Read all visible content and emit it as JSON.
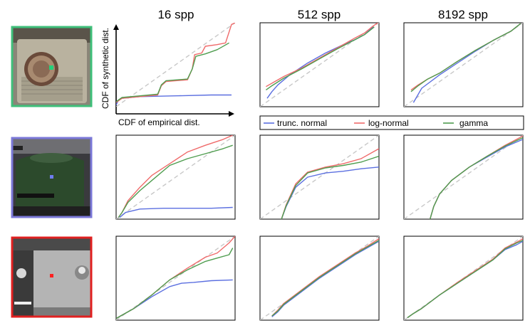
{
  "column_titles": [
    "16 spp",
    "512 spp",
    "8192 spp"
  ],
  "axis_labels": {
    "y": "CDF of synthetic dist.",
    "x": "CDF of empirical dist."
  },
  "legend": [
    {
      "name": "trunc. normal",
      "color": "#5b6fe0"
    },
    {
      "name": "log-normal",
      "color": "#ef6a6a"
    },
    {
      "name": "gamma",
      "color": "#4f9d4f"
    }
  ],
  "thumbnails": [
    {
      "name": "clock-radio-thumbnail",
      "border_color": "#3fbf7a",
      "marker_color": "#22d07a"
    },
    {
      "name": "kettle-thumbnail",
      "border_color": "#7b78d8",
      "marker_color": "#6f7cf0"
    },
    {
      "name": "appliance-thumbnail",
      "border_color": "#e02020",
      "marker_color": "#ff2020"
    }
  ],
  "colors": {
    "diagonal": "#c8c8c8",
    "frame": "#000000"
  },
  "chart_data": [
    {
      "type": "line",
      "row": 0,
      "col": 0,
      "xlim": [
        0,
        1
      ],
      "ylim": [
        0,
        1
      ],
      "series": [
        {
          "name": "trunc. normal",
          "color": "#5b6fe0",
          "x": [
            0,
            0.02,
            0.05,
            0.2,
            0.5,
            0.8,
            0.97
          ],
          "y": [
            0.02,
            0.08,
            0.1,
            0.12,
            0.13,
            0.14,
            0.14
          ]
        },
        {
          "name": "log-normal",
          "color": "#ef6a6a",
          "x": [
            0,
            0.05,
            0.2,
            0.35,
            0.38,
            0.42,
            0.6,
            0.64,
            0.66,
            0.72,
            0.75,
            0.85,
            0.92,
            0.97,
            1.0
          ],
          "y": [
            0.05,
            0.1,
            0.12,
            0.14,
            0.25,
            0.3,
            0.32,
            0.45,
            0.62,
            0.64,
            0.72,
            0.74,
            0.76,
            0.98,
            1.0
          ]
        },
        {
          "name": "gamma",
          "color": "#4f9d4f",
          "x": [
            0,
            0.05,
            0.2,
            0.35,
            0.38,
            0.42,
            0.6,
            0.64,
            0.67,
            0.75,
            0.85,
            0.95
          ],
          "y": [
            0.06,
            0.11,
            0.13,
            0.15,
            0.26,
            0.31,
            0.33,
            0.45,
            0.6,
            0.63,
            0.68,
            0.76
          ]
        }
      ]
    },
    {
      "type": "line",
      "row": 0,
      "col": 1,
      "xlim": [
        0,
        1
      ],
      "ylim": [
        0,
        1
      ],
      "series": [
        {
          "name": "trunc. normal",
          "color": "#5b6fe0",
          "x": [
            0.06,
            0.1,
            0.15,
            0.25,
            0.4,
            0.55,
            0.7,
            0.8,
            0.88,
            0.95
          ],
          "y": [
            0.1,
            0.18,
            0.26,
            0.38,
            0.52,
            0.64,
            0.74,
            0.8,
            0.86,
            0.95
          ]
        },
        {
          "name": "log-normal",
          "color": "#ef6a6a",
          "x": [
            0.05,
            0.1,
            0.2,
            0.35,
            0.5,
            0.65,
            0.8,
            0.88,
            0.95,
            0.99
          ],
          "y": [
            0.24,
            0.28,
            0.36,
            0.46,
            0.58,
            0.7,
            0.82,
            0.88,
            0.96,
            1.0
          ]
        },
        {
          "name": "gamma",
          "color": "#4f9d4f",
          "x": [
            0.05,
            0.1,
            0.2,
            0.35,
            0.5,
            0.65,
            0.8,
            0.88,
            0.96
          ],
          "y": [
            0.2,
            0.25,
            0.34,
            0.45,
            0.57,
            0.69,
            0.8,
            0.86,
            0.95
          ]
        }
      ]
    },
    {
      "type": "line",
      "row": 0,
      "col": 2,
      "xlim": [
        0,
        1
      ],
      "ylim": [
        0,
        1
      ],
      "series": [
        {
          "name": "trunc. normal",
          "color": "#5b6fe0",
          "x": [
            0.08,
            0.15,
            0.3,
            0.45,
            0.6,
            0.75,
            0.9,
            0.98
          ],
          "y": [
            0.05,
            0.22,
            0.38,
            0.52,
            0.66,
            0.79,
            0.9,
            0.99
          ]
        },
        {
          "name": "log-normal",
          "color": "#ef6a6a",
          "x": [
            0.06,
            0.12,
            0.2,
            0.3,
            0.45,
            0.6,
            0.75,
            0.9,
            0.98
          ],
          "y": [
            0.2,
            0.26,
            0.33,
            0.4,
            0.54,
            0.67,
            0.79,
            0.9,
            0.99
          ]
        },
        {
          "name": "gamma",
          "color": "#4f9d4f",
          "x": [
            0.06,
            0.12,
            0.2,
            0.3,
            0.45,
            0.6,
            0.75,
            0.9,
            0.98
          ],
          "y": [
            0.18,
            0.25,
            0.33,
            0.4,
            0.54,
            0.67,
            0.79,
            0.9,
            0.99
          ]
        }
      ]
    },
    {
      "type": "line",
      "row": 1,
      "col": 0,
      "xlim": [
        0,
        1
      ],
      "ylim": [
        0,
        1
      ],
      "series": [
        {
          "name": "trunc. normal",
          "color": "#5b6fe0",
          "x": [
            0.03,
            0.08,
            0.2,
            0.4,
            0.6,
            0.8,
            0.98
          ],
          "y": [
            0.02,
            0.08,
            0.12,
            0.13,
            0.13,
            0.13,
            0.14
          ]
        },
        {
          "name": "log-normal",
          "color": "#ef6a6a",
          "x": [
            0.02,
            0.05,
            0.1,
            0.2,
            0.3,
            0.45,
            0.6,
            0.75,
            0.9,
            0.98
          ],
          "y": [
            0.02,
            0.08,
            0.22,
            0.38,
            0.52,
            0.66,
            0.8,
            0.88,
            0.95,
            1.0
          ]
        },
        {
          "name": "gamma",
          "color": "#4f9d4f",
          "x": [
            0.02,
            0.05,
            0.1,
            0.2,
            0.3,
            0.45,
            0.6,
            0.75,
            0.9,
            0.98
          ],
          "y": [
            0.02,
            0.08,
            0.2,
            0.34,
            0.46,
            0.64,
            0.72,
            0.78,
            0.84,
            0.88
          ]
        }
      ]
    },
    {
      "type": "line",
      "row": 1,
      "col": 1,
      "xlim": [
        0,
        1
      ],
      "ylim": [
        0,
        1
      ],
      "series": [
        {
          "name": "trunc. normal",
          "color": "#5b6fe0",
          "x": [
            0.18,
            0.22,
            0.3,
            0.4,
            0.55,
            0.7,
            0.85,
            1.0
          ],
          "y": [
            0.0,
            0.15,
            0.38,
            0.5,
            0.55,
            0.57,
            0.6,
            0.62
          ]
        },
        {
          "name": "log-normal",
          "color": "#ef6a6a",
          "x": [
            0.18,
            0.22,
            0.3,
            0.4,
            0.55,
            0.7,
            0.85,
            1.0
          ],
          "y": [
            0.0,
            0.17,
            0.42,
            0.56,
            0.62,
            0.66,
            0.72,
            0.84
          ]
        },
        {
          "name": "gamma",
          "color": "#4f9d4f",
          "x": [
            0.18,
            0.22,
            0.3,
            0.4,
            0.55,
            0.7,
            0.85,
            1.0
          ],
          "y": [
            0.0,
            0.16,
            0.4,
            0.55,
            0.61,
            0.64,
            0.68,
            0.75
          ]
        }
      ]
    },
    {
      "type": "line",
      "row": 1,
      "col": 2,
      "xlim": [
        0,
        1
      ],
      "ylim": [
        0,
        1
      ],
      "series": [
        {
          "name": "trunc. normal",
          "color": "#5b6fe0",
          "x": [
            0.22,
            0.25,
            0.3,
            0.4,
            0.55,
            0.7,
            0.85,
            1.0
          ],
          "y": [
            0.0,
            0.15,
            0.3,
            0.46,
            0.62,
            0.74,
            0.86,
            0.95
          ]
        },
        {
          "name": "log-normal",
          "color": "#ef6a6a",
          "x": [
            0.22,
            0.25,
            0.3,
            0.4,
            0.55,
            0.7,
            0.85,
            1.0
          ],
          "y": [
            0.0,
            0.15,
            0.3,
            0.46,
            0.62,
            0.75,
            0.88,
            0.99
          ]
        },
        {
          "name": "gamma",
          "color": "#4f9d4f",
          "x": [
            0.22,
            0.25,
            0.3,
            0.4,
            0.55,
            0.7,
            0.85,
            1.0
          ],
          "y": [
            0.0,
            0.15,
            0.3,
            0.46,
            0.62,
            0.75,
            0.87,
            0.97
          ]
        }
      ]
    },
    {
      "type": "line",
      "row": 2,
      "col": 0,
      "xlim": [
        0,
        1
      ],
      "ylim": [
        0,
        1
      ],
      "series": [
        {
          "name": "trunc. normal",
          "color": "#5b6fe0",
          "x": [
            0.0,
            0.15,
            0.3,
            0.45,
            0.55,
            0.65,
            0.8,
            0.98
          ],
          "y": [
            0.02,
            0.14,
            0.28,
            0.4,
            0.44,
            0.45,
            0.47,
            0.48
          ]
        },
        {
          "name": "log-normal",
          "color": "#ef6a6a",
          "x": [
            0.0,
            0.15,
            0.3,
            0.45,
            0.6,
            0.75,
            0.85,
            0.95,
            1.0
          ],
          "y": [
            0.02,
            0.14,
            0.3,
            0.48,
            0.62,
            0.75,
            0.8,
            0.92,
            1.0
          ]
        },
        {
          "name": "gamma",
          "color": "#4f9d4f",
          "x": [
            0.0,
            0.15,
            0.3,
            0.45,
            0.6,
            0.75,
            0.85,
            0.95,
            0.98
          ],
          "y": [
            0.02,
            0.14,
            0.3,
            0.48,
            0.6,
            0.7,
            0.74,
            0.78,
            0.86
          ]
        }
      ]
    },
    {
      "type": "line",
      "row": 2,
      "col": 1,
      "xlim": [
        0,
        1
      ],
      "ylim": [
        0,
        1
      ],
      "series": [
        {
          "name": "trunc. normal",
          "color": "#5b6fe0",
          "x": [
            0.1,
            0.15,
            0.2,
            0.35,
            0.5,
            0.65,
            0.8,
            0.9,
            1.0
          ],
          "y": [
            0.04,
            0.1,
            0.18,
            0.34,
            0.5,
            0.64,
            0.78,
            0.86,
            0.94
          ]
        },
        {
          "name": "log-normal",
          "color": "#ef6a6a",
          "x": [
            0.1,
            0.15,
            0.2,
            0.35,
            0.5,
            0.65,
            0.8,
            0.9,
            1.0
          ],
          "y": [
            0.05,
            0.12,
            0.2,
            0.36,
            0.52,
            0.66,
            0.8,
            0.88,
            0.97
          ]
        },
        {
          "name": "gamma",
          "color": "#4f9d4f",
          "x": [
            0.1,
            0.15,
            0.2,
            0.35,
            0.5,
            0.65,
            0.8,
            0.9,
            1.0
          ],
          "y": [
            0.05,
            0.11,
            0.19,
            0.35,
            0.51,
            0.65,
            0.79,
            0.87,
            0.95
          ]
        }
      ]
    },
    {
      "type": "line",
      "row": 2,
      "col": 2,
      "xlim": [
        0,
        1
      ],
      "ylim": [
        0,
        1
      ],
      "series": [
        {
          "name": "trunc. normal",
          "color": "#5b6fe0",
          "x": [
            0.03,
            0.08,
            0.15,
            0.3,
            0.45,
            0.6,
            0.75,
            0.85,
            0.95,
            1.0
          ],
          "y": [
            0.03,
            0.08,
            0.14,
            0.3,
            0.44,
            0.58,
            0.72,
            0.84,
            0.9,
            0.94
          ]
        },
        {
          "name": "log-normal",
          "color": "#ef6a6a",
          "x": [
            0.03,
            0.08,
            0.15,
            0.3,
            0.45,
            0.6,
            0.75,
            0.85,
            0.95,
            1.0
          ],
          "y": [
            0.03,
            0.08,
            0.14,
            0.3,
            0.45,
            0.59,
            0.73,
            0.86,
            0.93,
            0.97
          ]
        },
        {
          "name": "gamma",
          "color": "#4f9d4f",
          "x": [
            0.03,
            0.08,
            0.15,
            0.3,
            0.45,
            0.6,
            0.75,
            0.85,
            0.95,
            1.0
          ],
          "y": [
            0.03,
            0.08,
            0.14,
            0.3,
            0.44,
            0.58,
            0.72,
            0.85,
            0.92,
            0.95
          ]
        }
      ]
    }
  ]
}
